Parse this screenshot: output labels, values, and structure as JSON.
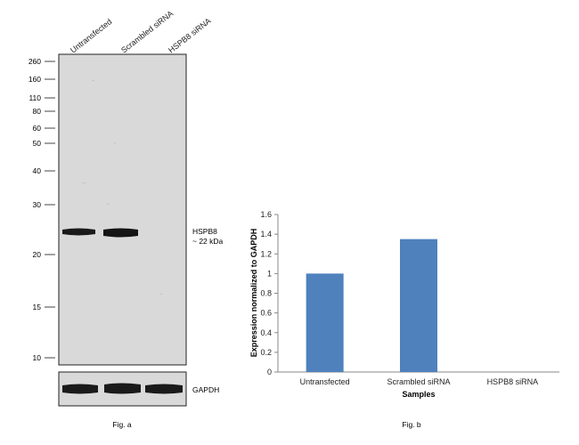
{
  "fig_a": {
    "caption": "Fig. a",
    "lanes": [
      "Untransfected",
      "Scrambled siRNA",
      "HSPB8 siRNA"
    ],
    "mw_markers": [
      "260",
      "160",
      "110",
      "80",
      "60",
      "50",
      "40",
      "30",
      "20",
      "15",
      "10"
    ],
    "band_label_line1": "HSPB8",
    "band_label_line2": "~ 22 kDa",
    "loading_control_label": "GAPDH",
    "colors": {
      "membrane": "#d8d8d8",
      "band": "#1a1a1a"
    }
  },
  "fig_b": {
    "caption": "Fig. b",
    "chart_data": {
      "type": "bar",
      "categories": [
        "Untransfected",
        "Scrambled siRNA",
        "HSPB8 siRNA"
      ],
      "values": [
        1.0,
        1.35,
        0
      ],
      "xlabel": "Samples",
      "ylabel": "Expression normalized to GAPDH",
      "ylim": [
        0,
        1.6
      ],
      "yticks": [
        "0",
        "0.2",
        "0.4",
        "0.6",
        "0.8",
        "1",
        "1.2",
        "1.4",
        "1.6"
      ],
      "grid": false,
      "bar_color": "#4f81bd"
    }
  }
}
